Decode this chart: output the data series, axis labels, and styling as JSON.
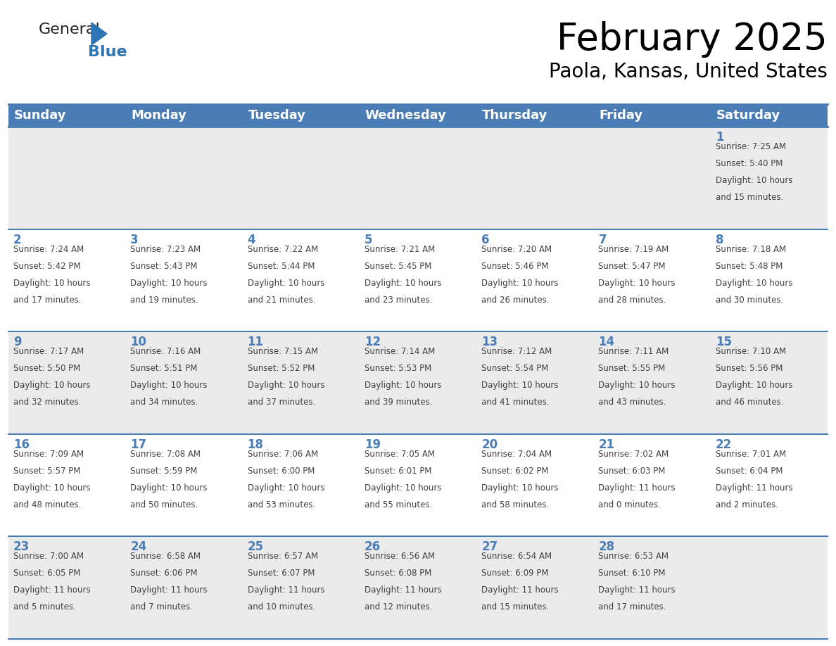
{
  "title": "February 2025",
  "subtitle": "Paola, Kansas, United States",
  "header_bg": "#4A7DB5",
  "header_text_color": "#FFFFFF",
  "days_of_week": [
    "Sunday",
    "Monday",
    "Tuesday",
    "Wednesday",
    "Thursday",
    "Friday",
    "Saturday"
  ],
  "title_font_size": 38,
  "subtitle_font_size": 20,
  "header_font_size": 13,
  "cell_bg_row0": "#EBEBEB",
  "cell_bg_row1": "#FFFFFF",
  "cell_bg_row2": "#EBEBEB",
  "cell_bg_row3": "#FFFFFF",
  "cell_bg_row4": "#EBEBEB",
  "cell_border_color": "#4A7DB5",
  "day_number_color": "#4A7DB5",
  "day_number_font_size": 12,
  "info_font_size": 8.5,
  "info_color": "#404040",
  "logo_general_color": "#222222",
  "logo_blue_color": "#2E75B6",
  "logo_triangle_color": "#2E75B6",
  "calendar_data": [
    [
      {
        "day": null,
        "sunrise": null,
        "sunset": null,
        "daylight": null
      },
      {
        "day": null,
        "sunrise": null,
        "sunset": null,
        "daylight": null
      },
      {
        "day": null,
        "sunrise": null,
        "sunset": null,
        "daylight": null
      },
      {
        "day": null,
        "sunrise": null,
        "sunset": null,
        "daylight": null
      },
      {
        "day": null,
        "sunrise": null,
        "sunset": null,
        "daylight": null
      },
      {
        "day": null,
        "sunrise": null,
        "sunset": null,
        "daylight": null
      },
      {
        "day": 1,
        "sunrise": "7:25 AM",
        "sunset": "5:40 PM",
        "daylight": "10 hours and 15 minutes."
      }
    ],
    [
      {
        "day": 2,
        "sunrise": "7:24 AM",
        "sunset": "5:42 PM",
        "daylight": "10 hours and 17 minutes."
      },
      {
        "day": 3,
        "sunrise": "7:23 AM",
        "sunset": "5:43 PM",
        "daylight": "10 hours and 19 minutes."
      },
      {
        "day": 4,
        "sunrise": "7:22 AM",
        "sunset": "5:44 PM",
        "daylight": "10 hours and 21 minutes."
      },
      {
        "day": 5,
        "sunrise": "7:21 AM",
        "sunset": "5:45 PM",
        "daylight": "10 hours and 23 minutes."
      },
      {
        "day": 6,
        "sunrise": "7:20 AM",
        "sunset": "5:46 PM",
        "daylight": "10 hours and 26 minutes."
      },
      {
        "day": 7,
        "sunrise": "7:19 AM",
        "sunset": "5:47 PM",
        "daylight": "10 hours and 28 minutes."
      },
      {
        "day": 8,
        "sunrise": "7:18 AM",
        "sunset": "5:48 PM",
        "daylight": "10 hours and 30 minutes."
      }
    ],
    [
      {
        "day": 9,
        "sunrise": "7:17 AM",
        "sunset": "5:50 PM",
        "daylight": "10 hours and 32 minutes."
      },
      {
        "day": 10,
        "sunrise": "7:16 AM",
        "sunset": "5:51 PM",
        "daylight": "10 hours and 34 minutes."
      },
      {
        "day": 11,
        "sunrise": "7:15 AM",
        "sunset": "5:52 PM",
        "daylight": "10 hours and 37 minutes."
      },
      {
        "day": 12,
        "sunrise": "7:14 AM",
        "sunset": "5:53 PM",
        "daylight": "10 hours and 39 minutes."
      },
      {
        "day": 13,
        "sunrise": "7:12 AM",
        "sunset": "5:54 PM",
        "daylight": "10 hours and 41 minutes."
      },
      {
        "day": 14,
        "sunrise": "7:11 AM",
        "sunset": "5:55 PM",
        "daylight": "10 hours and 43 minutes."
      },
      {
        "day": 15,
        "sunrise": "7:10 AM",
        "sunset": "5:56 PM",
        "daylight": "10 hours and 46 minutes."
      }
    ],
    [
      {
        "day": 16,
        "sunrise": "7:09 AM",
        "sunset": "5:57 PM",
        "daylight": "10 hours and 48 minutes."
      },
      {
        "day": 17,
        "sunrise": "7:08 AM",
        "sunset": "5:59 PM",
        "daylight": "10 hours and 50 minutes."
      },
      {
        "day": 18,
        "sunrise": "7:06 AM",
        "sunset": "6:00 PM",
        "daylight": "10 hours and 53 minutes."
      },
      {
        "day": 19,
        "sunrise": "7:05 AM",
        "sunset": "6:01 PM",
        "daylight": "10 hours and 55 minutes."
      },
      {
        "day": 20,
        "sunrise": "7:04 AM",
        "sunset": "6:02 PM",
        "daylight": "10 hours and 58 minutes."
      },
      {
        "day": 21,
        "sunrise": "7:02 AM",
        "sunset": "6:03 PM",
        "daylight": "11 hours and 0 minutes."
      },
      {
        "day": 22,
        "sunrise": "7:01 AM",
        "sunset": "6:04 PM",
        "daylight": "11 hours and 2 minutes."
      }
    ],
    [
      {
        "day": 23,
        "sunrise": "7:00 AM",
        "sunset": "6:05 PM",
        "daylight": "11 hours and 5 minutes."
      },
      {
        "day": 24,
        "sunrise": "6:58 AM",
        "sunset": "6:06 PM",
        "daylight": "11 hours and 7 minutes."
      },
      {
        "day": 25,
        "sunrise": "6:57 AM",
        "sunset": "6:07 PM",
        "daylight": "11 hours and 10 minutes."
      },
      {
        "day": 26,
        "sunrise": "6:56 AM",
        "sunset": "6:08 PM",
        "daylight": "11 hours and 12 minutes."
      },
      {
        "day": 27,
        "sunrise": "6:54 AM",
        "sunset": "6:09 PM",
        "daylight": "11 hours and 15 minutes."
      },
      {
        "day": 28,
        "sunrise": "6:53 AM",
        "sunset": "6:10 PM",
        "daylight": "11 hours and 17 minutes."
      },
      {
        "day": null,
        "sunrise": null,
        "sunset": null,
        "daylight": null
      }
    ]
  ]
}
